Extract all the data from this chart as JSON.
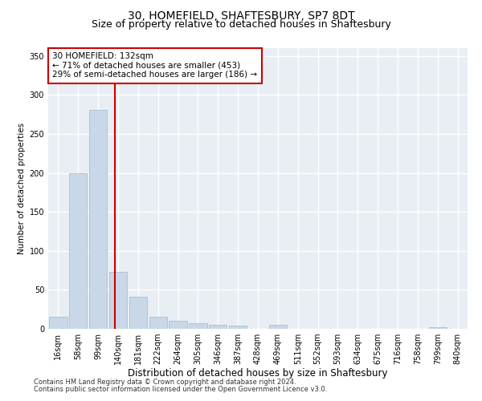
{
  "title1": "30, HOMEFIELD, SHAFTESBURY, SP7 8DT",
  "title2": "Size of property relative to detached houses in Shaftesbury",
  "xlabel": "Distribution of detached houses by size in Shaftesbury",
  "ylabel": "Number of detached properties",
  "footer1": "Contains HM Land Registry data © Crown copyright and database right 2024.",
  "footer2": "Contains public sector information licensed under the Open Government Licence v3.0.",
  "bar_labels": [
    "16sqm",
    "58sqm",
    "99sqm",
    "140sqm",
    "181sqm",
    "222sqm",
    "264sqm",
    "305sqm",
    "346sqm",
    "387sqm",
    "428sqm",
    "469sqm",
    "511sqm",
    "552sqm",
    "593sqm",
    "634sqm",
    "675sqm",
    "716sqm",
    "758sqm",
    "799sqm",
    "840sqm"
  ],
  "bar_values": [
    15,
    200,
    281,
    73,
    41,
    15,
    10,
    7,
    5,
    4,
    0,
    5,
    0,
    0,
    0,
    0,
    0,
    0,
    0,
    2,
    0
  ],
  "bar_color": "#c8d8e8",
  "bar_edgecolor": "#a0b8cc",
  "annotation_text": "30 HOMEFIELD: 132sqm\n← 71% of detached houses are smaller (453)\n29% of semi-detached houses are larger (186) →",
  "vline_x": 2.82,
  "vline_color": "#cc0000",
  "annotation_box_edgecolor": "#cc0000",
  "annotation_fontsize": 7.5,
  "ylim": [
    0,
    360
  ],
  "yticks": [
    0,
    50,
    100,
    150,
    200,
    250,
    300,
    350
  ],
  "background_color": "#e8eef4",
  "grid_color": "#ffffff",
  "title_fontsize": 10,
  "subtitle_fontsize": 9,
  "xlabel_fontsize": 8.5,
  "ylabel_fontsize": 7.5,
  "tick_fontsize": 7,
  "footer_fontsize": 6
}
